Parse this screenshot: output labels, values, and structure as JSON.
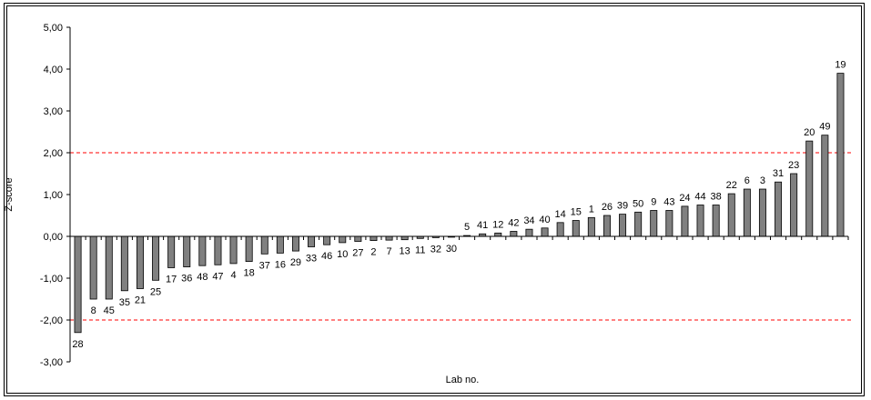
{
  "chart_data": {
    "type": "bar",
    "title": "",
    "xlabel": "Lab no.",
    "ylabel": "Z-score",
    "ylim": [
      -3,
      5
    ],
    "yticks": [
      "-3,00",
      "-2,00",
      "-1,00",
      "0,00",
      "1,00",
      "2,00",
      "3,00",
      "4,00",
      "5,00"
    ],
    "reference_lines": [
      2,
      -2
    ],
    "colors": {
      "bar": "#808080",
      "bar_edge": "#000000",
      "reference_line": "#ff0000",
      "axis": "#000000"
    },
    "grid": false,
    "legend": "none",
    "categories": [
      "28",
      "8",
      "45",
      "35",
      "21",
      "25",
      "17",
      "36",
      "48",
      "47",
      "4",
      "18",
      "37",
      "16",
      "29",
      "33",
      "46",
      "10",
      "27",
      "2",
      "7",
      "13",
      "11",
      "32",
      "30",
      "5",
      "41",
      "12",
      "42",
      "34",
      "40",
      "14",
      "15",
      "1",
      "26",
      "39",
      "50",
      "9",
      "43",
      "24",
      "44",
      "38",
      "22",
      "6",
      "3",
      "31",
      "23",
      "20",
      "49",
      "19"
    ],
    "values": [
      -2.3,
      -1.5,
      -1.5,
      -1.3,
      -1.25,
      -1.05,
      -0.75,
      -0.73,
      -0.7,
      -0.68,
      -0.65,
      -0.6,
      -0.42,
      -0.4,
      -0.35,
      -0.25,
      -0.2,
      -0.15,
      -0.12,
      -0.1,
      -0.09,
      -0.08,
      -0.05,
      -0.03,
      -0.02,
      0.02,
      0.06,
      0.08,
      0.12,
      0.17,
      0.2,
      0.33,
      0.38,
      0.45,
      0.5,
      0.53,
      0.58,
      0.62,
      0.62,
      0.72,
      0.75,
      0.75,
      1.02,
      1.13,
      1.13,
      1.3,
      1.5,
      2.28,
      2.42,
      3.9
    ]
  }
}
